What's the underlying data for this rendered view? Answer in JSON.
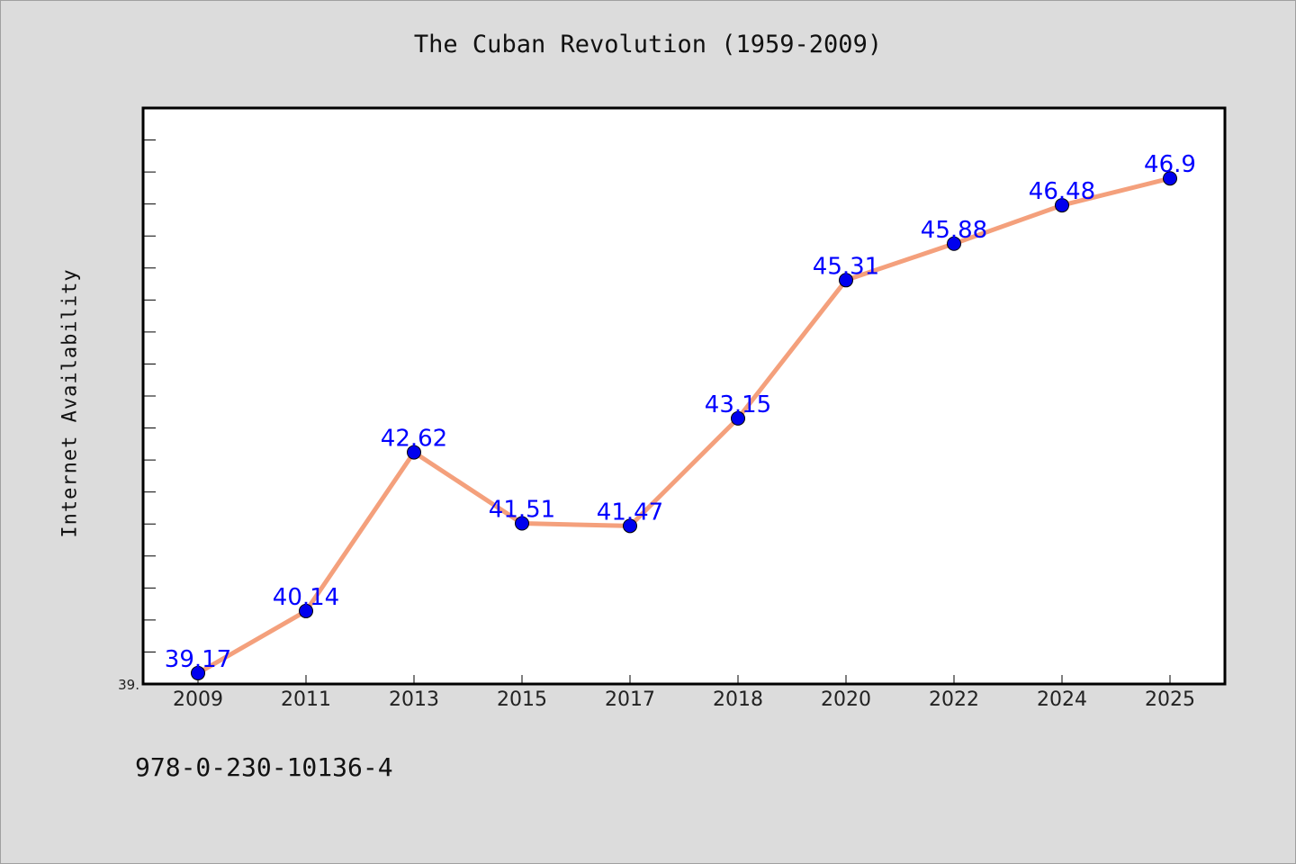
{
  "title": "The Cuban Revolution (1959-2009)",
  "footer_text": "978-0-230-10136-4",
  "chart_data": {
    "type": "line",
    "title": "The Cuban Revolution (1959-2009)",
    "xlabel": "",
    "ylabel": "Internet Availability",
    "categories": [
      "2009",
      "2011",
      "2013",
      "2015",
      "2017",
      "2018",
      "2020",
      "2022",
      "2024",
      "2025"
    ],
    "series": [
      {
        "values": [
          39.17,
          40.14,
          42.62,
          41.51,
          41.47,
          43.15,
          45.31,
          45.88,
          46.48,
          46.9
        ]
      }
    ],
    "data_labels": [
      "39.17",
      "40.14",
      "42.62",
      "41.51",
      "41.47",
      "43.15",
      "45.31",
      "45.88",
      "46.48",
      "46.9"
    ],
    "ytick_labels": [
      "39."
    ],
    "ylim": [
      39.0,
      48.0
    ],
    "grid": false,
    "line_color": "#f4a07c",
    "marker_color": "#0000ee",
    "label_color": "#0000ff"
  }
}
